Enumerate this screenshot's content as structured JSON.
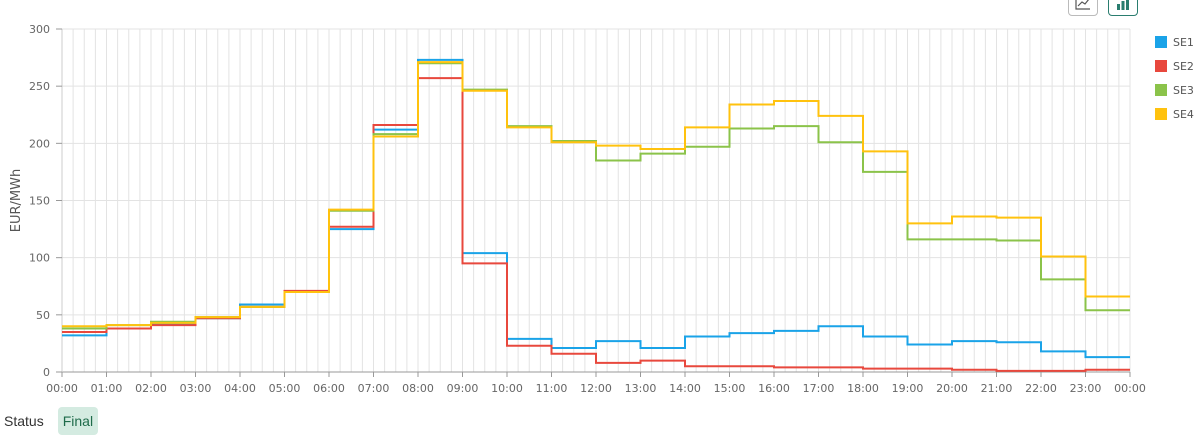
{
  "toolbar": {
    "line_icon": "line-chart-icon",
    "bar_icon": "bar-chart-icon"
  },
  "status": {
    "label": "Status",
    "value": "Final"
  },
  "chart_data": {
    "type": "line",
    "step": true,
    "ylabel": "EUR/MWh",
    "ylim": [
      0,
      300
    ],
    "yticks": [
      0,
      50,
      100,
      150,
      200,
      250,
      300
    ],
    "xticks": [
      "00:00",
      "01:00",
      "02:00",
      "03:00",
      "04:00",
      "05:00",
      "06:00",
      "07:00",
      "08:00",
      "09:00",
      "10:00",
      "11:00",
      "12:00",
      "13:00",
      "14:00",
      "15:00",
      "16:00",
      "17:00",
      "18:00",
      "19:00",
      "20:00",
      "21:00",
      "22:00",
      "23:00",
      "00:00"
    ],
    "grid": true,
    "legend": "right",
    "series": [
      {
        "name": "SE1",
        "color": "#1aa3e8",
        "values": [
          32,
          38,
          42,
          47,
          59,
          70,
          125,
          212,
          273,
          104,
          29,
          21,
          27,
          21,
          31,
          34,
          36,
          40,
          31,
          24,
          27,
          26,
          18,
          13
        ]
      },
      {
        "name": "SE2",
        "color": "#e8483d",
        "values": [
          35,
          38,
          41,
          47,
          57,
          71,
          127,
          216,
          257,
          95,
          23,
          16,
          8,
          10,
          5,
          5,
          4,
          4,
          3,
          3,
          2,
          1,
          1,
          2
        ]
      },
      {
        "name": "SE3",
        "color": "#8bc34a",
        "values": [
          38,
          41,
          44,
          48,
          57,
          70,
          141,
          208,
          270,
          247,
          215,
          202,
          185,
          191,
          197,
          213,
          215,
          201,
          175,
          116,
          116,
          115,
          81,
          54
        ]
      },
      {
        "name": "SE4",
        "color": "#ffc20e",
        "values": [
          40,
          41,
          43,
          48,
          57,
          70,
          142,
          206,
          271,
          246,
          214,
          201,
          198,
          195,
          214,
          234,
          237,
          224,
          193,
          130,
          136,
          135,
          101,
          66
        ]
      }
    ]
  }
}
